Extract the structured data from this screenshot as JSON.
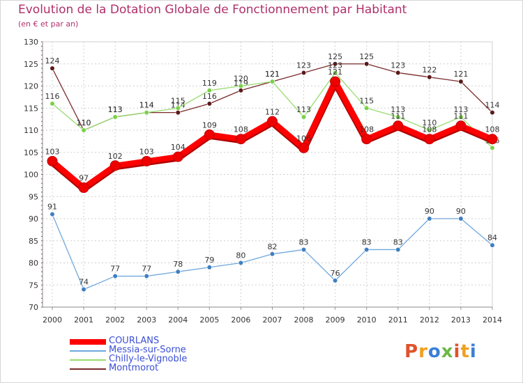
{
  "title": "Evolution de la Dotation Globale de Fonctionnement par Habitant",
  "subtitle": "(en € et par an)",
  "logo": "Proxiti",
  "logo_colors": [
    "#e0522a",
    "#f0a020",
    "#3a7fd6",
    "#6cb84a",
    "#e0522a",
    "#f0a020",
    "#3a7fd6"
  ],
  "chart_data": {
    "type": "line",
    "x": [
      "2000",
      "2001",
      "2002",
      "2003",
      "2004",
      "2005",
      "2006",
      "2007",
      "2008",
      "2009",
      "2010",
      "2011",
      "2012",
      "2013",
      "2014"
    ],
    "ylim": [
      70,
      130
    ],
    "yticks": [
      "130",
      "125",
      "120",
      "115",
      "110",
      "105",
      "100",
      "95",
      "90",
      "85",
      "80",
      "75",
      "70"
    ],
    "grid": true,
    "legend_position": "bottom-left",
    "series": [
      {
        "name": "Montmorot",
        "color": "#7a2a2a",
        "marker": "#5a1a1a",
        "weight": "thin",
        "values": [
          124,
          110,
          113,
          114,
          114,
          116,
          119,
          121,
          123,
          125,
          125,
          123,
          122,
          121,
          114
        ]
      },
      {
        "name": "Chilly-le-Vignoble",
        "color": "#96dc6e",
        "marker": "#7ad04a",
        "weight": "thin",
        "values": [
          116,
          110,
          113,
          114,
          115,
          119,
          120,
          121,
          113,
          123,
          115,
          113,
          110,
          113,
          106
        ]
      },
      {
        "name": "Messia-sur-Sorne",
        "color": "#6fa8dc",
        "marker": "#3f7fc0",
        "weight": "thin",
        "values": [
          91,
          74,
          77,
          77,
          78,
          79,
          80,
          82,
          83,
          76,
          83,
          83,
          90,
          90,
          84
        ]
      },
      {
        "name": "COURLANS",
        "color": "#ff0000",
        "marker": "#ee0000",
        "weight": "bold",
        "values": [
          103,
          97,
          102,
          103,
          104,
          109,
          108,
          112,
          106,
          121,
          108,
          111,
          108,
          111,
          108
        ]
      }
    ],
    "legend": [
      "COURLANS",
      "Messia-sur-Sorne",
      "Chilly-le-Vignoble",
      "Montmorot"
    ]
  }
}
